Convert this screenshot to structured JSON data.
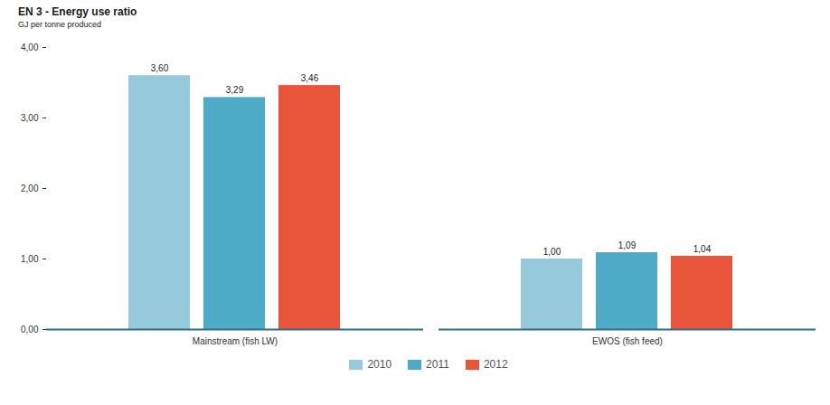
{
  "chart_data": {
    "type": "bar",
    "title": "EN 3 - Energy use ratio",
    "subtitle": "GJ per tonne produced",
    "categories": [
      "Mainstream (fish LW)",
      "EWOS (fish feed)"
    ],
    "series": [
      {
        "name": "2010",
        "color": "#96c9db",
        "values": [
          3.6,
          1.0
        ],
        "value_labels": [
          "3,60",
          "1,00"
        ]
      },
      {
        "name": "2011",
        "color": "#4eabc8",
        "values": [
          3.29,
          1.09
        ],
        "value_labels": [
          "3,29",
          "1,09"
        ]
      },
      {
        "name": "2012",
        "color": "#e8553b",
        "values": [
          3.46,
          1.04
        ],
        "value_labels": [
          "3,46",
          "1,04"
        ]
      }
    ],
    "ylim": [
      0,
      4
    ],
    "yticks": [
      {
        "value": 0,
        "label": "0,00"
      },
      {
        "value": 1,
        "label": "1,00"
      },
      {
        "value": 2,
        "label": "2,00"
      },
      {
        "value": 3,
        "label": "3,00"
      },
      {
        "value": 4,
        "label": "4,00"
      }
    ],
    "data_labels": true,
    "legend": "bottom",
    "grid": false
  }
}
